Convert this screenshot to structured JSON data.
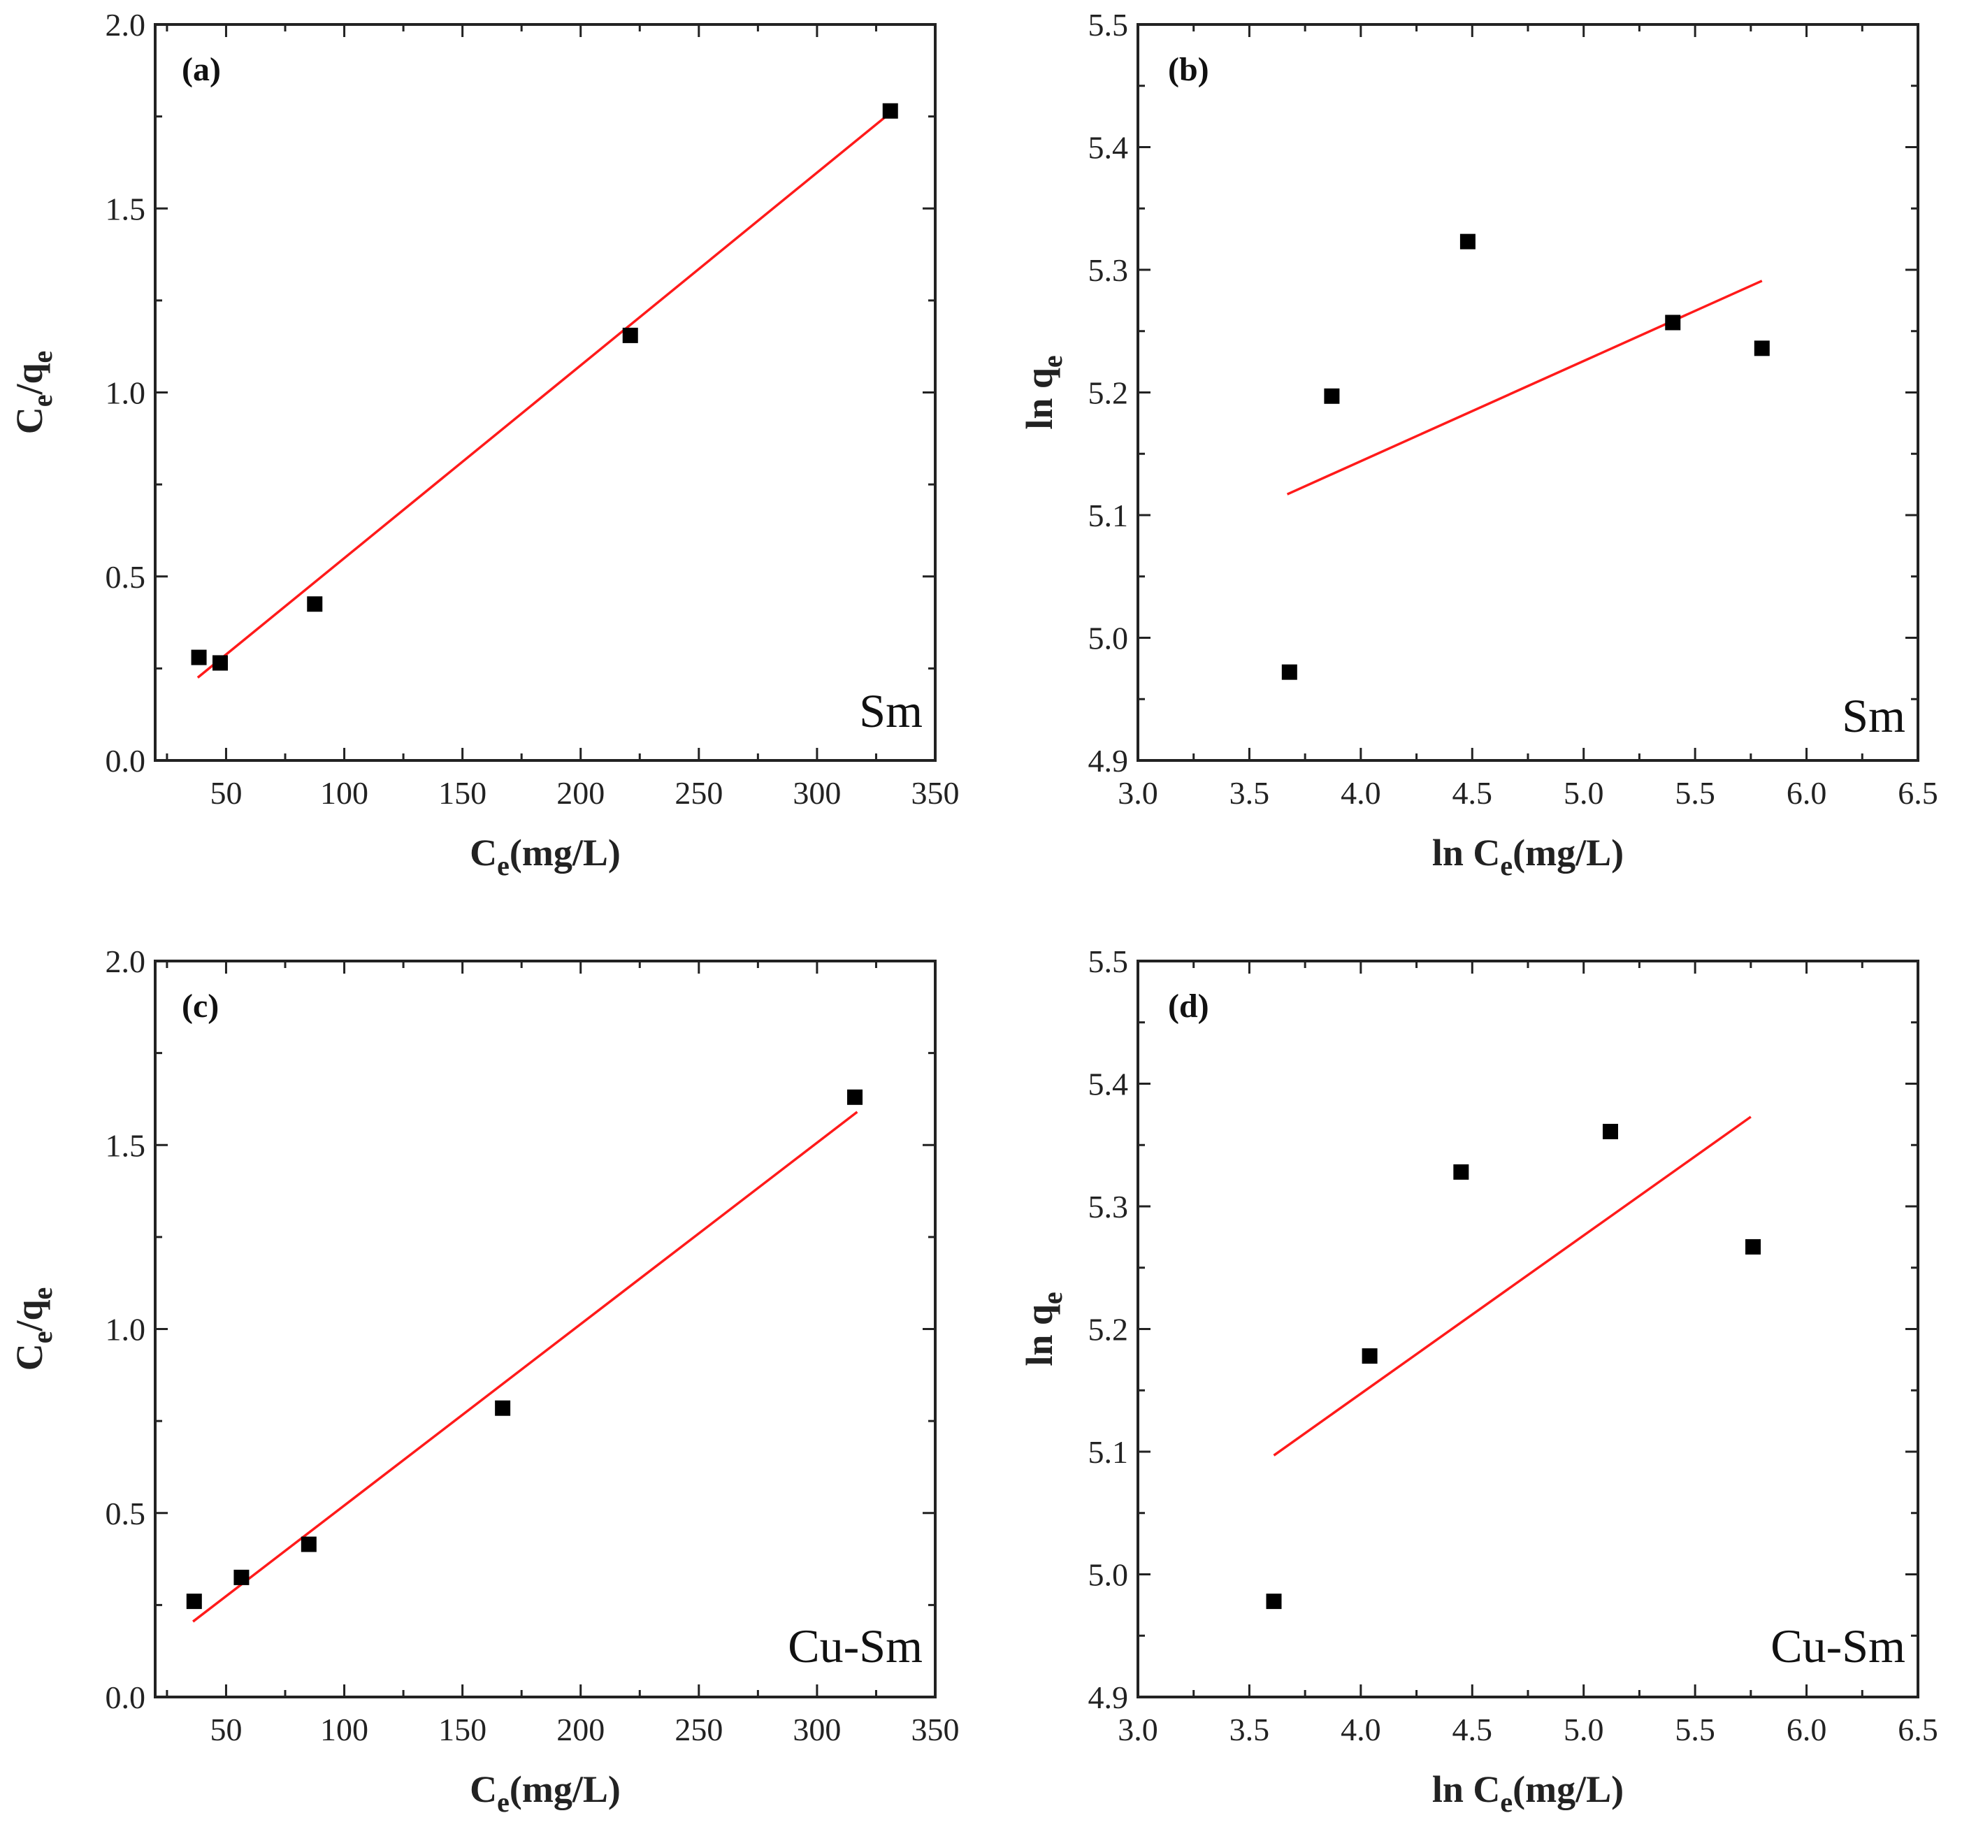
{
  "chart_data": [
    {
      "type": "scatter",
      "panel": "(a)",
      "material": "Sm",
      "ylabel": {
        "main": "C",
        "sub1": "e",
        "mid": "/q",
        "sub2": "e"
      },
      "xlabel": {
        "main": "C",
        "sub": "e",
        "rest": "(mg/L)"
      },
      "xlim": [
        20,
        350
      ],
      "ylim": [
        0.0,
        2.0
      ],
      "xticks": [
        50,
        100,
        150,
        200,
        250,
        300,
        350
      ],
      "xtick_labels": [
        "50",
        "100",
        "150",
        "200",
        "250",
        "300",
        "350"
      ],
      "yticks": [
        0.0,
        0.5,
        1.0,
        1.5,
        2.0
      ],
      "ytick_labels": [
        "0.0",
        "0.5",
        "1.0",
        "1.5",
        "2.0"
      ],
      "points": {
        "x": [
          38.5,
          47.5,
          87.5,
          221,
          331
        ],
        "y": [
          0.28,
          0.265,
          0.425,
          1.155,
          1.765
        ]
      },
      "fit": {
        "x": [
          38,
          332
        ],
        "y": [
          0.225,
          1.765
        ]
      }
    },
    {
      "type": "scatter",
      "panel": "(b)",
      "material": "Sm",
      "ylabel": {
        "main": "ln q",
        "sub": "e"
      },
      "xlabel": {
        "main": "ln C",
        "sub": "e",
        "rest": "(mg/L)"
      },
      "xlim": [
        3.0,
        6.5
      ],
      "ylim": [
        4.9,
        5.5
      ],
      "xticks": [
        3.0,
        3.5,
        4.0,
        4.5,
        5.0,
        5.5,
        6.0,
        6.5
      ],
      "xtick_labels": [
        "3.0",
        "3.5",
        "4.0",
        "4.5",
        "5.0",
        "5.5",
        "6.0",
        "6.5"
      ],
      "yticks": [
        4.9,
        5.0,
        5.1,
        5.2,
        5.3,
        5.4,
        5.5
      ],
      "ytick_labels": [
        "4.9",
        "5.0",
        "5.1",
        "5.2",
        "5.3",
        "5.4",
        "5.5"
      ],
      "points": {
        "x": [
          3.68,
          3.87,
          4.48,
          5.4,
          5.8
        ],
        "y": [
          4.972,
          5.197,
          5.323,
          5.257,
          5.236
        ]
      },
      "fit": {
        "x": [
          3.67,
          5.8
        ],
        "y": [
          5.117,
          5.291
        ]
      }
    },
    {
      "type": "scatter",
      "panel": "(c)",
      "material": "Cu-Sm",
      "ylabel": {
        "main": "C",
        "sub1": "e",
        "mid": "/q",
        "sub2": "e"
      },
      "xlabel": {
        "main": "C",
        "sub": "e",
        "rest": "(mg/L)"
      },
      "xlim": [
        20,
        350
      ],
      "ylim": [
        0.0,
        2.0
      ],
      "xticks": [
        50,
        100,
        150,
        200,
        250,
        300,
        350
      ],
      "xtick_labels": [
        "50",
        "100",
        "150",
        "200",
        "250",
        "300",
        "350"
      ],
      "yticks": [
        0.0,
        0.5,
        1.0,
        1.5,
        2.0
      ],
      "ytick_labels": [
        "0.0",
        "0.5",
        "1.0",
        "1.5",
        "2.0"
      ],
      "points": {
        "x": [
          36.5,
          56.5,
          85,
          167,
          316
        ],
        "y": [
          0.26,
          0.325,
          0.415,
          0.785,
          1.63
        ]
      },
      "fit": {
        "x": [
          36,
          317
        ],
        "y": [
          0.205,
          1.59
        ]
      }
    },
    {
      "type": "scatter",
      "panel": "(d)",
      "material": "Cu-Sm",
      "ylabel": {
        "main": "ln q",
        "sub": "e"
      },
      "xlabel": {
        "main": "ln C",
        "sub": "e",
        "rest": "(mg/L)"
      },
      "xlim": [
        3.0,
        6.5
      ],
      "ylim": [
        4.9,
        5.5
      ],
      "xticks": [
        3.0,
        3.5,
        4.0,
        4.5,
        5.0,
        5.5,
        6.0,
        6.5
      ],
      "xtick_labels": [
        "3.0",
        "3.5",
        "4.0",
        "4.5",
        "5.0",
        "5.5",
        "6.0",
        "6.5"
      ],
      "yticks": [
        4.9,
        5.0,
        5.1,
        5.2,
        5.3,
        5.4,
        5.5
      ],
      "ytick_labels": [
        "4.9",
        "5.0",
        "5.1",
        "5.2",
        "5.3",
        "5.4",
        "5.5"
      ],
      "points": {
        "x": [
          3.61,
          4.04,
          4.45,
          5.12,
          5.76
        ],
        "y": [
          4.978,
          5.178,
          5.328,
          5.361,
          5.267
        ]
      },
      "fit": {
        "x": [
          3.61,
          5.75
        ],
        "y": [
          5.097,
          5.373
        ]
      }
    }
  ]
}
